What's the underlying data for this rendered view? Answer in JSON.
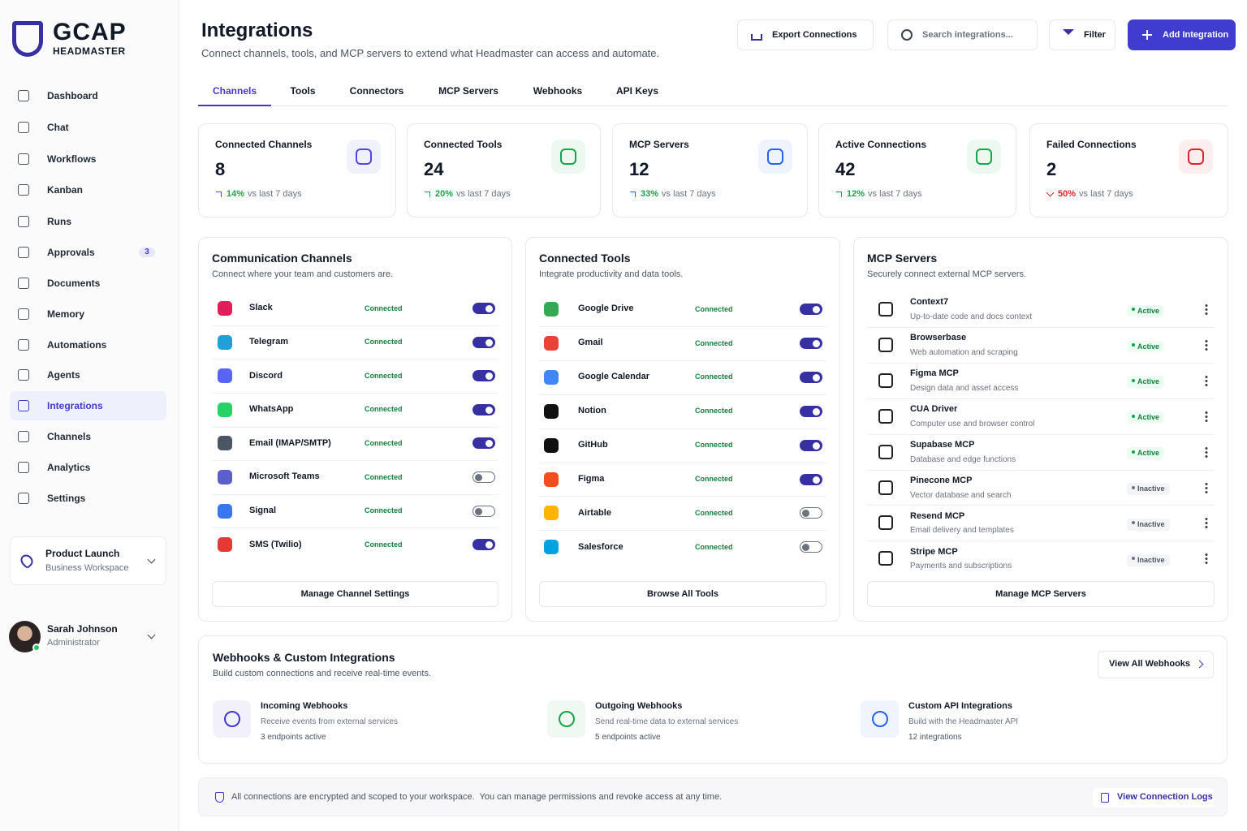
{
  "brand": {
    "name": "GCAP",
    "sub": "HEADMASTER"
  },
  "nav": [
    {
      "label": "Dashboard"
    },
    {
      "label": "Chat"
    },
    {
      "label": "Workflows"
    },
    {
      "label": "Kanban"
    },
    {
      "label": "Runs"
    },
    {
      "label": "Approvals",
      "badge": 3
    },
    {
      "label": "Documents"
    },
    {
      "label": "Memory"
    },
    {
      "label": "Automations"
    },
    {
      "label": "Agents"
    },
    {
      "label": "Integrations",
      "active": true
    },
    {
      "label": "Channels"
    },
    {
      "label": "Analytics"
    },
    {
      "label": "Settings"
    }
  ],
  "workspace": {
    "name": "Product Launch",
    "type": "Business Workspace"
  },
  "user": {
    "name": "Sarah Johnson",
    "role": "Administrator"
  },
  "header": {
    "title": "Integrations",
    "subtitle": "Connect channels, tools, and MCP servers to extend what Headmaster can access and automate.",
    "export": "Export Connections",
    "search": "Search integrations...",
    "filter": "Filter",
    "add": "Add Integration"
  },
  "tabs": [
    {
      "label": "Channels",
      "active": true
    },
    {
      "label": "Tools"
    },
    {
      "label": "Connectors"
    },
    {
      "label": "MCP Servers"
    },
    {
      "label": "Webhooks"
    },
    {
      "label": "API Keys"
    }
  ],
  "stats": [
    {
      "label": "Connected Channels",
      "value": 8,
      "change": "14%",
      "trend": "up",
      "note": "vs last 7 days",
      "color": "#4f46e5"
    },
    {
      "label": "Connected Tools",
      "value": 24,
      "change": "20%",
      "trend": "up",
      "note": "vs last 7 days",
      "color": "#16a34a"
    },
    {
      "label": "MCP Servers",
      "value": 12,
      "change": "33%",
      "trend": "up",
      "note": "vs last 7 days",
      "color": "#2563eb"
    },
    {
      "label": "Active Connections",
      "value": 42,
      "change": "12%",
      "trend": "up",
      "note": "vs last 7 days",
      "color": "#16a34a"
    },
    {
      "label": "Failed Connections",
      "value": 2,
      "change": "50%",
      "trend": "down",
      "note": "vs last 7 days",
      "color": "#dc2626"
    }
  ],
  "channels": {
    "title": "Communication Channels",
    "subtitle": "Connect where your team and customers are.",
    "action": "Manage Channel Settings",
    "items": [
      {
        "name": "Slack",
        "status": "Connected",
        "enabled": true
      },
      {
        "name": "Telegram",
        "status": "Connected",
        "enabled": true
      },
      {
        "name": "Discord",
        "status": "Connected",
        "enabled": true
      },
      {
        "name": "WhatsApp",
        "status": "Connected",
        "enabled": true
      },
      {
        "name": "Email (IMAP/SMTP)",
        "status": "Connected",
        "enabled": true
      },
      {
        "name": "Microsoft Teams",
        "status": "Connected",
        "enabled": false
      },
      {
        "name": "Signal",
        "status": "Connected",
        "enabled": false
      },
      {
        "name": "SMS (Twilio)",
        "status": "Connected",
        "enabled": true
      }
    ]
  },
  "tools": {
    "title": "Connected Tools",
    "subtitle": "Integrate productivity and data tools.",
    "action": "Browse All Tools",
    "items": [
      {
        "name": "Google Drive",
        "status": "Connected",
        "enabled": true
      },
      {
        "name": "Gmail",
        "status": "Connected",
        "enabled": true
      },
      {
        "name": "Google Calendar",
        "status": "Connected",
        "enabled": true
      },
      {
        "name": "Notion",
        "status": "Connected",
        "enabled": true
      },
      {
        "name": "GitHub",
        "status": "Connected",
        "enabled": true
      },
      {
        "name": "Figma",
        "status": "Connected",
        "enabled": true
      },
      {
        "name": "Airtable",
        "status": "Connected",
        "enabled": false
      },
      {
        "name": "Salesforce",
        "status": "Connected",
        "enabled": false
      }
    ]
  },
  "mcp": {
    "title": "MCP Servers",
    "subtitle": "Securely connect external MCP servers.",
    "action": "Manage MCP Servers",
    "items": [
      {
        "name": "Context7",
        "desc": "Up-to-date code and docs context",
        "status": "Active"
      },
      {
        "name": "Browserbase",
        "desc": "Web automation and scraping",
        "status": "Active"
      },
      {
        "name": "Figma MCP",
        "desc": "Design data and asset access",
        "status": "Active"
      },
      {
        "name": "CUA Driver",
        "desc": "Computer use and browser control",
        "status": "Active"
      },
      {
        "name": "Supabase MCP",
        "desc": "Database and edge functions",
        "status": "Active"
      },
      {
        "name": "Pinecone MCP",
        "desc": "Vector database and search",
        "status": "Inactive"
      },
      {
        "name": "Resend MCP",
        "desc": "Email delivery and templates",
        "status": "Inactive"
      },
      {
        "name": "Stripe MCP",
        "desc": "Payments and subscriptions",
        "status": "Inactive"
      }
    ]
  },
  "webhooks": {
    "title": "Webhooks & Custom Integrations",
    "subtitle": "Build custom connections and receive real-time events.",
    "button": "View All Webhooks",
    "items": [
      {
        "title": "Incoming Webhooks",
        "desc": "Receive events from external services",
        "meta": "3 endpoints active"
      },
      {
        "title": "Outgoing Webhooks",
        "desc": "Send real-time data to external services",
        "meta": "5 endpoints active"
      },
      {
        "title": "Custom API Integrations",
        "desc": "Build with the Headmaster API",
        "meta": "12 integrations"
      }
    ]
  },
  "footer": {
    "note": "All connections are encrypted and scoped to your workspace.  You can manage permissions and revoke access at any time.",
    "link": "View Connection Logs"
  }
}
